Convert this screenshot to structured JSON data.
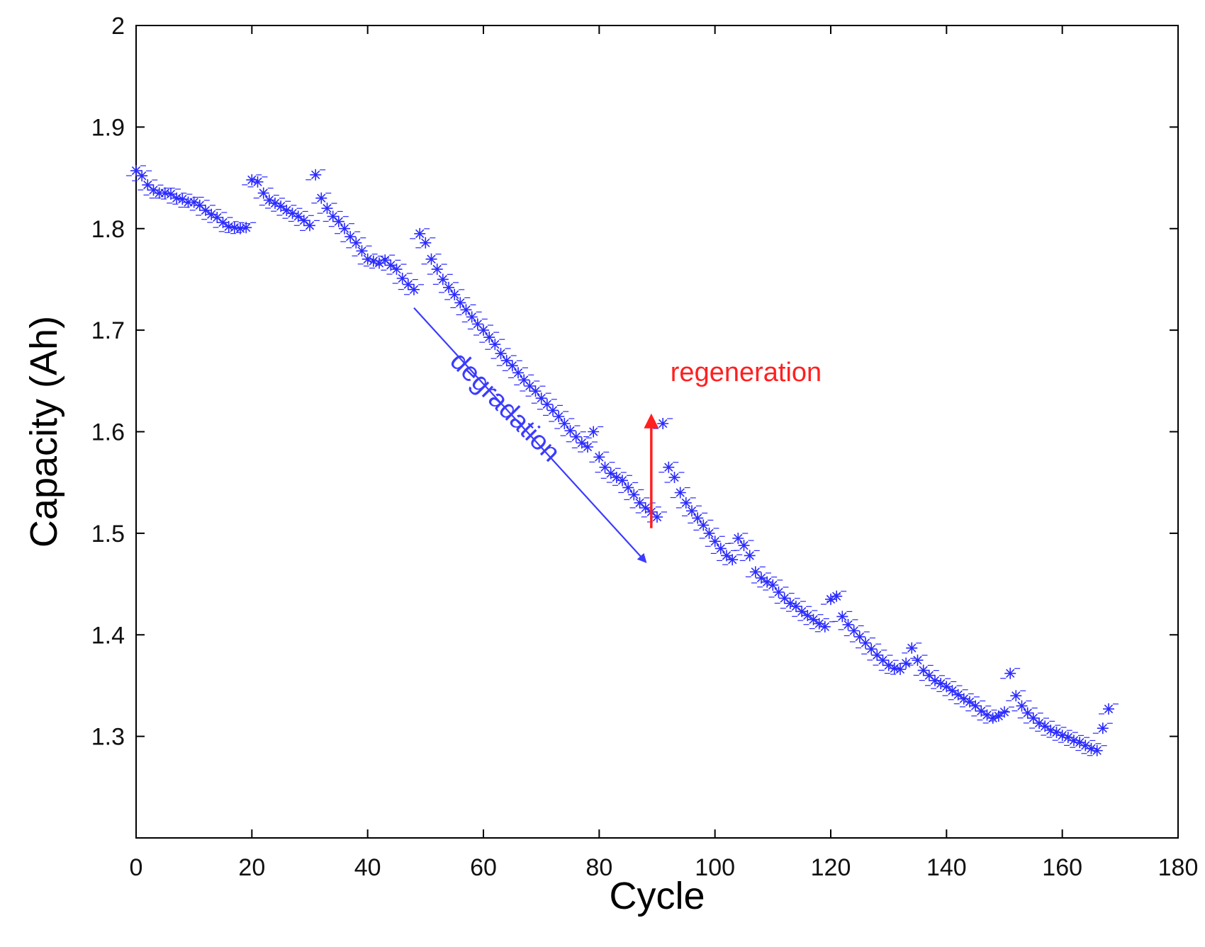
{
  "chart_data": {
    "type": "scatter",
    "title": "",
    "xlabel": "Cycle",
    "ylabel": "Capacity (Ah)",
    "xlim": [
      0,
      180
    ],
    "ylim": [
      1.2,
      2.0
    ],
    "xticks": [
      0,
      20,
      40,
      60,
      80,
      100,
      120,
      140,
      160,
      180
    ],
    "xtick_labels": [
      "0",
      "20",
      "40",
      "60",
      "80",
      "100",
      "120",
      "140",
      "160",
      "180"
    ],
    "yticks": [
      1.3,
      1.4,
      1.5,
      1.6,
      1.7,
      1.8,
      1.9,
      2.0
    ],
    "ytick_labels": [
      "1.3",
      "1.4",
      "1.5",
      "1.6",
      "1.7",
      "1.8",
      "1.9",
      "2"
    ],
    "grid": false,
    "marker": "asterisk",
    "series": [
      {
        "name": "Capacity",
        "color": "#2a2aff",
        "x": [
          0,
          1,
          2,
          3,
          4,
          5,
          6,
          7,
          8,
          9,
          10,
          11,
          12,
          13,
          14,
          15,
          16,
          17,
          18,
          19,
          20,
          21,
          22,
          23,
          24,
          25,
          26,
          27,
          28,
          29,
          30,
          31,
          32,
          33,
          34,
          35,
          36,
          37,
          38,
          39,
          40,
          41,
          42,
          43,
          44,
          45,
          46,
          47,
          48,
          49,
          50,
          51,
          52,
          53,
          54,
          55,
          56,
          57,
          58,
          59,
          60,
          61,
          62,
          63,
          64,
          65,
          66,
          67,
          68,
          69,
          70,
          71,
          72,
          73,
          74,
          75,
          76,
          77,
          78,
          79,
          80,
          81,
          82,
          83,
          84,
          85,
          86,
          87,
          88,
          89,
          90,
          91,
          92,
          93,
          94,
          95,
          96,
          97,
          98,
          99,
          100,
          101,
          102,
          103,
          104,
          105,
          106,
          107,
          108,
          109,
          110,
          111,
          112,
          113,
          114,
          115,
          116,
          117,
          118,
          119,
          120,
          121,
          122,
          123,
          124,
          125,
          126,
          127,
          128,
          129,
          130,
          131,
          132,
          133,
          134,
          135,
          136,
          137,
          138,
          139,
          140,
          141,
          142,
          143,
          144,
          145,
          146,
          147,
          148,
          149,
          150,
          151,
          152,
          153,
          154,
          155,
          156,
          157,
          158,
          159,
          160,
          161,
          162,
          163,
          164,
          165,
          166,
          167,
          168
        ],
        "y": [
          1.857,
          1.852,
          1.843,
          1.838,
          1.835,
          1.835,
          1.834,
          1.83,
          1.829,
          1.826,
          1.826,
          1.823,
          1.818,
          1.814,
          1.811,
          1.806,
          1.802,
          1.801,
          1.8,
          1.801,
          1.848,
          1.846,
          1.835,
          1.828,
          1.825,
          1.822,
          1.818,
          1.815,
          1.812,
          1.808,
          1.803,
          1.853,
          1.83,
          1.82,
          1.812,
          1.807,
          1.8,
          1.792,
          1.786,
          1.778,
          1.77,
          1.768,
          1.766,
          1.769,
          1.764,
          1.76,
          1.751,
          1.745,
          1.74,
          1.795,
          1.786,
          1.77,
          1.76,
          1.75,
          1.742,
          1.735,
          1.727,
          1.72,
          1.713,
          1.706,
          1.7,
          1.693,
          1.686,
          1.677,
          1.67,
          1.665,
          1.658,
          1.651,
          1.645,
          1.64,
          1.633,
          1.627,
          1.621,
          1.615,
          1.608,
          1.601,
          1.595,
          1.589,
          1.585,
          1.6,
          1.575,
          1.565,
          1.559,
          1.555,
          1.552,
          1.545,
          1.538,
          1.53,
          1.525,
          1.521,
          1.516,
          1.608,
          1.565,
          1.555,
          1.54,
          1.53,
          1.522,
          1.515,
          1.508,
          1.5,
          1.492,
          1.485,
          1.478,
          1.474,
          1.495,
          1.488,
          1.478,
          1.462,
          1.456,
          1.452,
          1.449,
          1.442,
          1.436,
          1.431,
          1.428,
          1.423,
          1.419,
          1.415,
          1.411,
          1.408,
          1.435,
          1.438,
          1.418,
          1.41,
          1.404,
          1.398,
          1.392,
          1.386,
          1.38,
          1.375,
          1.37,
          1.367,
          1.366,
          1.372,
          1.387,
          1.375,
          1.365,
          1.36,
          1.355,
          1.352,
          1.349,
          1.345,
          1.341,
          1.337,
          1.334,
          1.33,
          1.325,
          1.321,
          1.318,
          1.32,
          1.324,
          1.362,
          1.34,
          1.33,
          1.323,
          1.318,
          1.313,
          1.31,
          1.306,
          1.304,
          1.301,
          1.299,
          1.296,
          1.294,
          1.291,
          1.288,
          1.286,
          1.308,
          1.327
        ]
      }
    ],
    "annotations": [
      {
        "text": "degradation",
        "color": "#3b3bff",
        "kind": "arrow",
        "from": [
          48,
          1.722
        ],
        "to": [
          88,
          1.472
        ],
        "text_anchor": [
          54,
          1.668
        ],
        "rotation_deg": 45
      },
      {
        "text": "regeneration",
        "color": "#ff2020",
        "kind": "arrow",
        "from": [
          89,
          1.505
        ],
        "to": [
          89,
          1.615
        ],
        "text_anchor": [
          92.3,
          1.65
        ]
      }
    ]
  }
}
